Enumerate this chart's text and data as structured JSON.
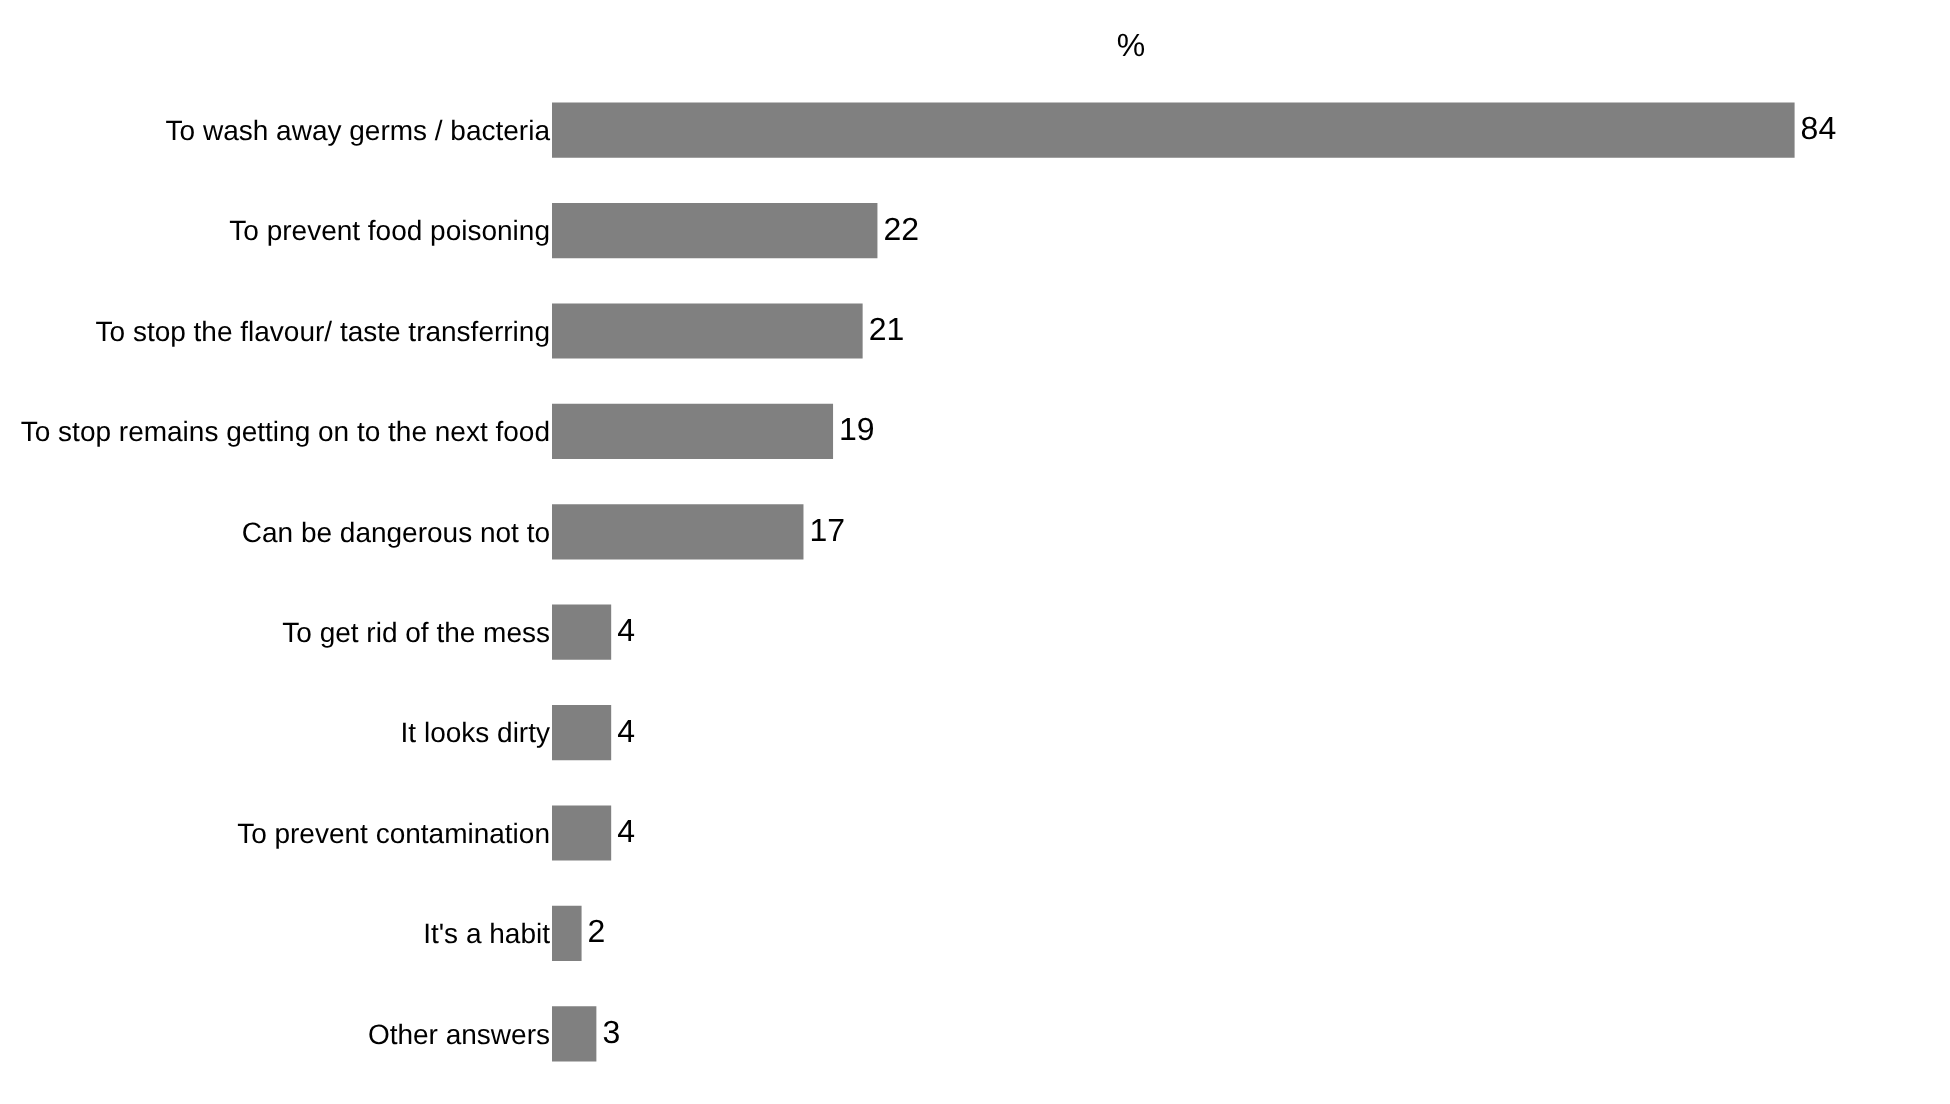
{
  "chart_data": {
    "type": "bar",
    "orientation": "horizontal",
    "title": "%",
    "categories": [
      "To wash away germs / bacteria",
      "To prevent food poisoning",
      "To stop the flavour/ taste transferring",
      "To stop remains getting on to the next food",
      "Can be dangerous not to",
      "To get rid of the mess",
      "It looks dirty",
      "To prevent contamination",
      "It's a habit",
      "Other answers"
    ],
    "values": [
      84,
      22,
      21,
      19,
      17,
      4,
      4,
      4,
      2,
      3
    ],
    "color": "#808080",
    "data_labels": true
  }
}
